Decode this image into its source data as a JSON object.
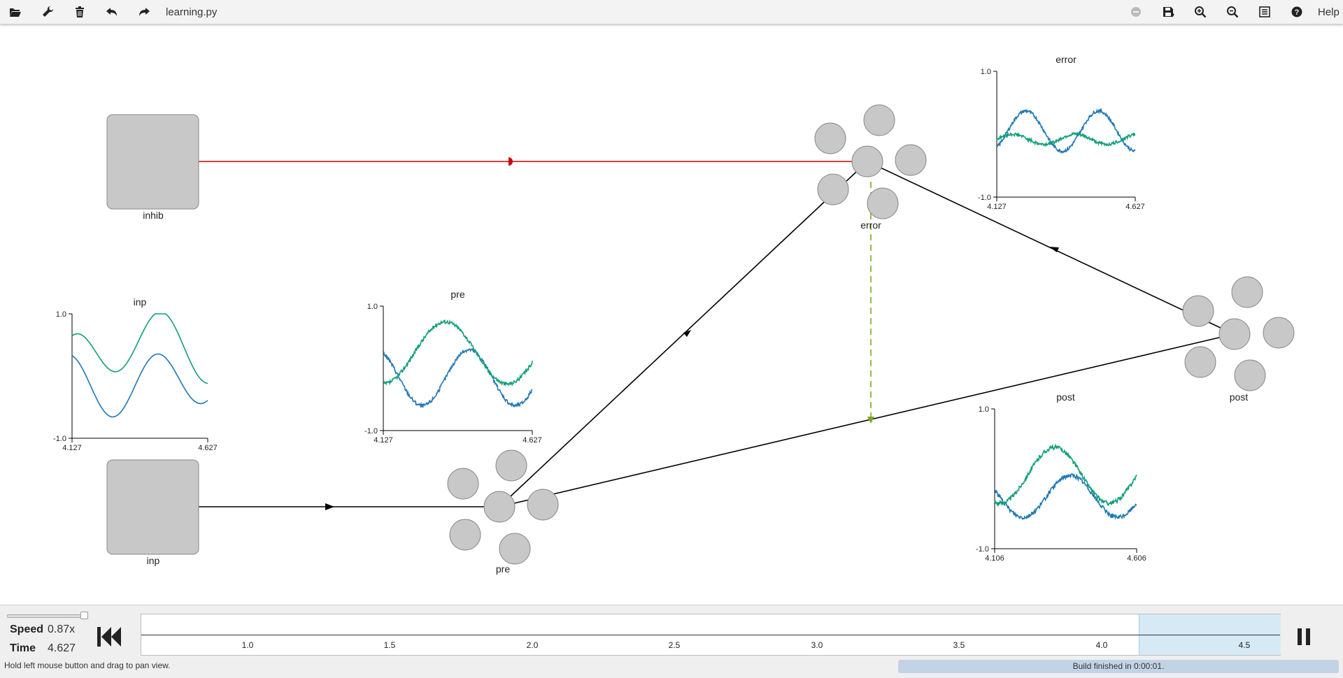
{
  "toolbar": {
    "filename": "learning.py",
    "help_label": "Help",
    "icons": [
      "folder-open-icon",
      "wrench-icon",
      "trash-icon",
      "undo-icon",
      "redo-icon",
      "minimap-icon",
      "save-icon",
      "zoom-in-icon",
      "zoom-out-icon",
      "config-icon",
      "help-icon"
    ]
  },
  "network": {
    "nodes": {
      "inhib": "inhib",
      "inp": "inp",
      "pre": "pre",
      "error": "error",
      "post": "post"
    },
    "colors": {
      "inhibitory": "#cc0000",
      "learning": "#7aaa1e",
      "connection": "#000000",
      "node": "#c8c8c8"
    }
  },
  "plots": [
    {
      "title": "inp",
      "ymax": "1.0",
      "ymin": "-1.0",
      "xmin": "4.127",
      "xmax": "4.627"
    },
    {
      "title": "pre",
      "ymax": "1.0",
      "ymin": "-1.0",
      "xmin": "4.127",
      "xmax": "4.627"
    },
    {
      "title": "error",
      "ymax": "1.0",
      "ymin": "-1.0",
      "xmin": "4.127",
      "xmax": "4.627"
    },
    {
      "title": "post",
      "ymax": "1.0",
      "ymin": "-1.0",
      "xmin": "4.106",
      "xmax": "4.606"
    }
  ],
  "series_colors": [
    "#1f77b4",
    "#0f9e7a"
  ],
  "sim": {
    "speed_label": "Speed",
    "speed_value": "0.87x",
    "time_label": "Time",
    "time_value": "4.627",
    "ticks": [
      "1.0",
      "1.5",
      "2.0",
      "2.5",
      "3.0",
      "3.5",
      "4.0",
      "4.5"
    ]
  },
  "status": {
    "hint": "Hold left mouse button and drag to pan view.",
    "build": "Build finished in 0:00:01."
  }
}
